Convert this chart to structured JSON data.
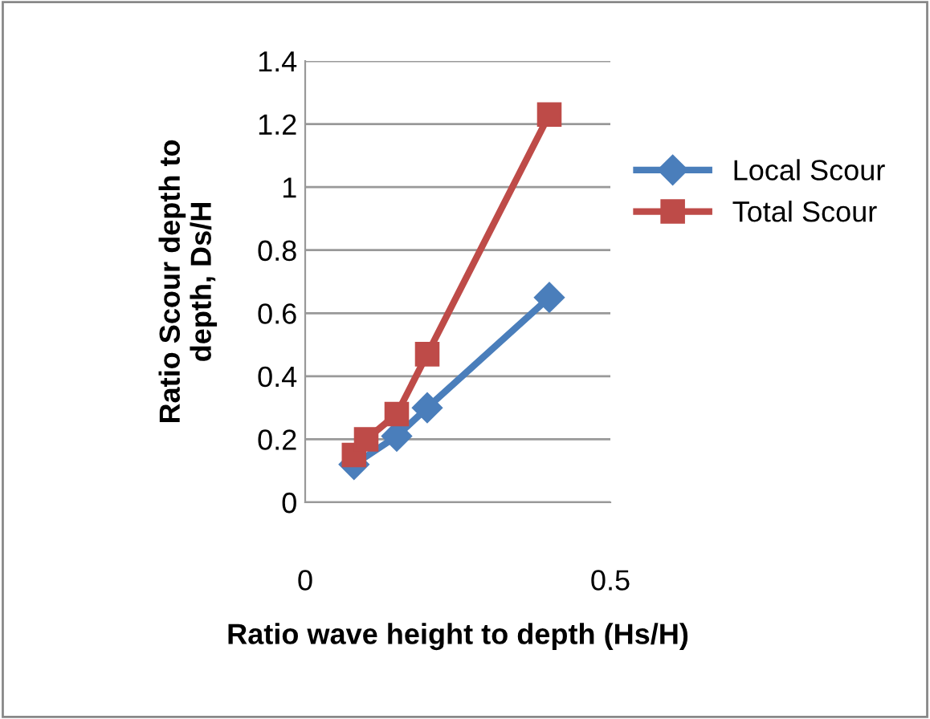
{
  "chart_data": {
    "type": "line",
    "xlabel": "Ratio wave height to depth (Hs/H)",
    "ylabel": "Ratio Scour depth to\ndepth, Ds/H",
    "xlim": [
      0,
      0.5
    ],
    "xticks": [
      0,
      0.5
    ],
    "ylim": [
      0,
      1.4
    ],
    "yticks": [
      0,
      0.2,
      0.4,
      0.6,
      0.8,
      1,
      1.2,
      1.4
    ],
    "grid": "y",
    "legend": "right",
    "series": [
      {
        "name": "Local Scour",
        "color": "#4a7ebb",
        "marker": "diamond",
        "x": [
          0.08,
          0.15,
          0.2,
          0.4
        ],
        "values": [
          0.12,
          0.21,
          0.3,
          0.65
        ]
      },
      {
        "name": "Total Scour",
        "color": "#be4b48",
        "marker": "square",
        "x": [
          0.08,
          0.1,
          0.15,
          0.2,
          0.4
        ],
        "values": [
          0.15,
          0.2,
          0.28,
          0.47,
          1.23
        ]
      }
    ]
  }
}
